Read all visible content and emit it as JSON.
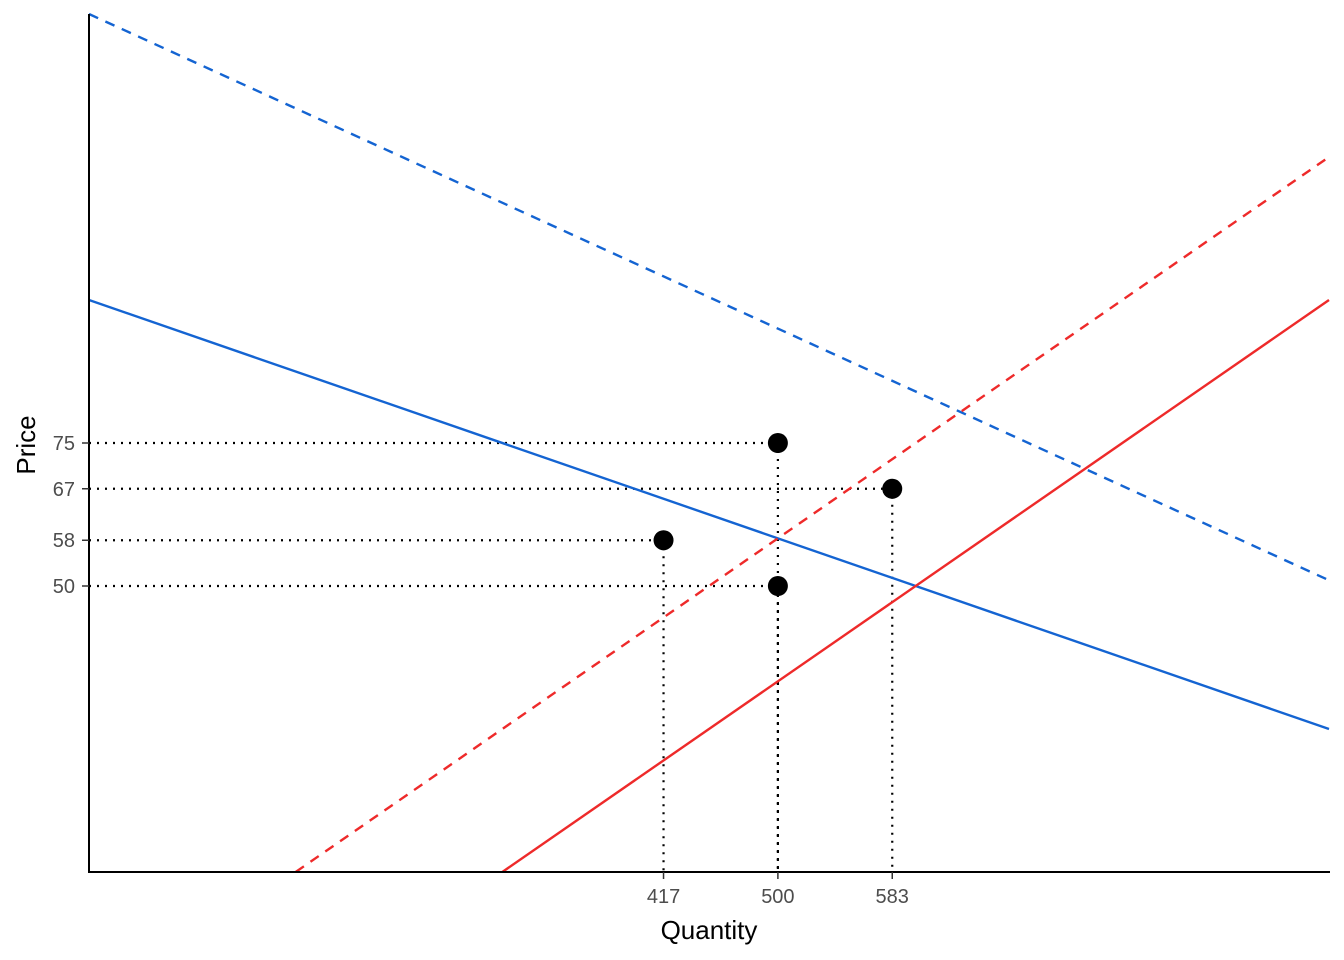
{
  "chart_data": {
    "type": "line",
    "title": "",
    "xlabel": "Quantity",
    "ylabel": "Price",
    "xlim": [
      0,
      900
    ],
    "ylim": [
      0,
      150
    ],
    "x_ticks": [
      417,
      500,
      583
    ],
    "x_tick_labels": [
      "417",
      "500",
      "583"
    ],
    "y_ticks": [
      50,
      58,
      67,
      75
    ],
    "y_tick_labels": [
      "50",
      "58",
      "67",
      "75"
    ],
    "grid": false,
    "legend": "none",
    "series": [
      {
        "style": "solid",
        "color": "#1464d2",
        "x": [
          0,
          900
        ],
        "y": [
          100,
          25
        ]
      },
      {
        "style": "dashed",
        "color": "#1464d2",
        "x": [
          0,
          900
        ],
        "y": [
          150,
          51
        ]
      },
      {
        "style": "solid",
        "color": "#ee2a2a",
        "x": [
          300,
          900
        ],
        "y": [
          0,
          100
        ]
      },
      {
        "style": "dashed",
        "color": "#ee2a2a",
        "x": [
          150,
          900
        ],
        "y": [
          0,
          125
        ]
      }
    ],
    "points": [
      {
        "x": 500,
        "y": 75
      },
      {
        "x": 583,
        "y": 67
      },
      {
        "x": 417,
        "y": 58
      },
      {
        "x": 500,
        "y": 50
      }
    ],
    "guides": [
      {
        "x": 500,
        "y": 75
      },
      {
        "x": 583,
        "y": 67
      },
      {
        "x": 417,
        "y": 58
      },
      {
        "x": 500,
        "y": 50
      }
    ]
  }
}
